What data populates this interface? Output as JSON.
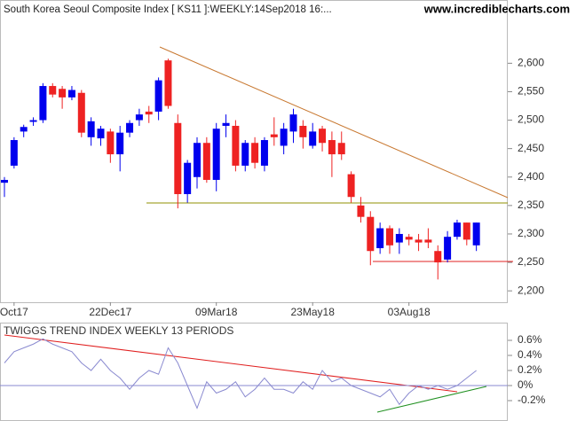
{
  "chart_data": [
    {
      "type": "candlestick",
      "title": "South Korea Seoul Composite Index [ KS11 ]:WEEKLY:14Sep2018 16:...",
      "source": "www.incrediblecharts.com",
      "categories": [
        null,
        "Oct17",
        null,
        null,
        null,
        null,
        null,
        null,
        null,
        null,
        null,
        "22Dec17",
        null,
        null,
        null,
        null,
        null,
        null,
        null,
        null,
        null,
        null,
        "09Mar18",
        null,
        null,
        null,
        null,
        null,
        null,
        null,
        null,
        null,
        "23May18",
        null,
        null,
        null,
        null,
        null,
        null,
        null,
        null,
        null,
        "03Aug18",
        null,
        null,
        null,
        null,
        null,
        null,
        null
      ],
      "open": [
        2390,
        2420,
        2480,
        2497,
        2500,
        2560,
        2555,
        2540,
        2548,
        2470,
        2468,
        2480,
        2440,
        2478,
        2500,
        2515,
        2515,
        2605,
        2495,
        2370,
        2400,
        2460,
        2395,
        2490,
        2490,
        2420,
        2460,
        2420,
        2475,
        2455,
        2480,
        2490,
        2455,
        2485,
        2465,
        2460,
        2405,
        2350,
        2330,
        2275,
        2310,
        2285,
        2295,
        2290,
        2290,
        2270,
        2255,
        2295,
        2320,
        2280
      ],
      "high": [
        2400,
        2470,
        2492,
        2505,
        2565,
        2565,
        2560,
        2560,
        2553,
        2505,
        2490,
        2485,
        2490,
        2500,
        2520,
        2525,
        2575,
        2608,
        2510,
        2430,
        2470,
        2470,
        2495,
        2510,
        2500,
        2465,
        2470,
        2470,
        2505,
        2495,
        2520,
        2500,
        2495,
        2490,
        2480,
        2480,
        2410,
        2365,
        2340,
        2320,
        2315,
        2310,
        2300,
        2300,
        2310,
        2280,
        2305,
        2325,
        2320,
        2320
      ],
      "low": [
        2365,
        2415,
        2470,
        2490,
        2495,
        2540,
        2520,
        2535,
        2470,
        2455,
        2455,
        2425,
        2410,
        2470,
        2490,
        2495,
        2500,
        2520,
        2345,
        2355,
        2380,
        2390,
        2375,
        2470,
        2410,
        2410,
        2415,
        2410,
        2455,
        2440,
        2460,
        2450,
        2450,
        2445,
        2400,
        2430,
        2355,
        2320,
        2245,
        2265,
        2265,
        2265,
        2280,
        2270,
        2275,
        2220,
        2250,
        2290,
        2280,
        2270
      ],
      "close": [
        2395,
        2465,
        2488,
        2500,
        2560,
        2545,
        2540,
        2553,
        2478,
        2498,
        2485,
        2440,
        2478,
        2495,
        2510,
        2510,
        2570,
        2525,
        2370,
        2425,
        2460,
        2395,
        2485,
        2495,
        2420,
        2460,
        2425,
        2465,
        2470,
        2485,
        2510,
        2470,
        2480,
        2460,
        2440,
        2440,
        2365,
        2330,
        2270,
        2310,
        2280,
        2300,
        2290,
        2285,
        2285,
        2250,
        2295,
        2320,
        2290,
        2320
      ],
      "up_color": "#0000ee",
      "down_color": "#ee2222",
      "ylim": [
        2180,
        2680
      ],
      "yticks": [
        {
          "value": 2200,
          "label": "2,200"
        },
        {
          "value": 2250,
          "label": "2,250"
        },
        {
          "value": 2300,
          "label": "2,300"
        },
        {
          "value": 2350,
          "label": "2,350"
        },
        {
          "value": 2400,
          "label": "2,400"
        },
        {
          "value": 2450,
          "label": "2,450"
        },
        {
          "value": 2500,
          "label": "2,500"
        },
        {
          "value": 2550,
          "label": "2,550"
        },
        {
          "value": 2600,
          "label": "2,600"
        }
      ]
    },
    {
      "type": "line",
      "title": "TWIGGS TREND INDEX WEEKLY 13 PERIODS",
      "values": [
        0.3,
        0.45,
        0.5,
        0.55,
        0.62,
        0.55,
        0.5,
        0.45,
        0.3,
        0.2,
        0.35,
        0.2,
        0.1,
        -0.05,
        0.1,
        0.2,
        0.15,
        0.5,
        0.3,
        0.0,
        -0.3,
        0.05,
        -0.1,
        -0.05,
        0.05,
        -0.15,
        -0.05,
        0.1,
        -0.05,
        -0.05,
        -0.1,
        0.05,
        -0.05,
        0.2,
        0.05,
        0.1,
        0.0,
        -0.05,
        -0.1,
        -0.15,
        -0.05,
        -0.25,
        -0.1,
        0.0,
        -0.05,
        0.0,
        -0.05,
        0.0,
        0.1,
        0.2
      ],
      "color": "#8a8ad0",
      "ylim": [
        -0.4,
        0.8
      ],
      "yticks": [
        {
          "value": -0.2,
          "label": "-0.2%"
        },
        {
          "value": 0,
          "label": "0%"
        },
        {
          "value": 0.2,
          "label": "0.2%"
        },
        {
          "value": 0.4,
          "label": "0.4%"
        },
        {
          "value": 0.6,
          "label": "0.6%"
        }
      ]
    }
  ]
}
